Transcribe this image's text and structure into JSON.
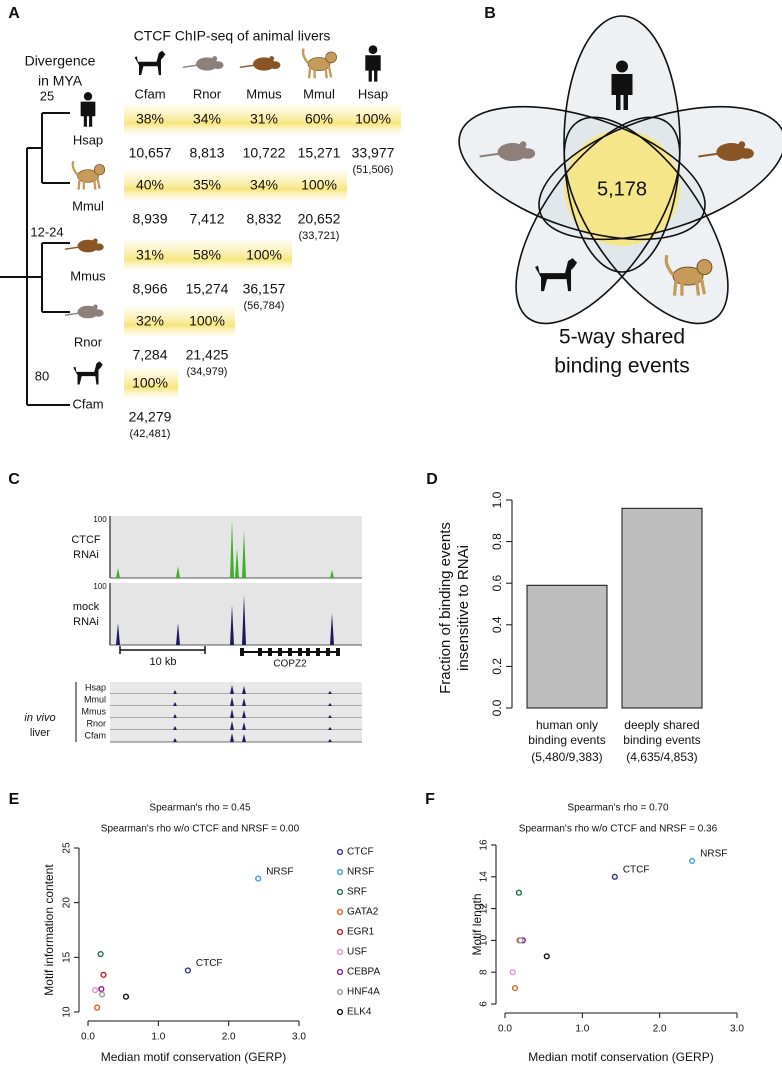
{
  "panel_a": {
    "letter": "A",
    "title": "CTCF ChIP-seq of animal livers",
    "divergence_label": [
      "Divergence",
      "in MYA"
    ],
    "columns": [
      "Cfam",
      "Rnor",
      "Mmus",
      "Mmul",
      "Hsap"
    ],
    "node_labels": [
      "25",
      "12-24",
      "80"
    ],
    "rows": [
      {
        "species": "Hsap",
        "percents": [
          "38%",
          "34%",
          "31%",
          "60%",
          "100%"
        ],
        "counts": [
          "10,657",
          "8,813",
          "10,722",
          "15,271",
          "33,977"
        ],
        "total": "(51,506)"
      },
      {
        "species": "Mmul",
        "percents": [
          "40%",
          "35%",
          "34%",
          "100%"
        ],
        "counts": [
          "8,939",
          "7,412",
          "8,832",
          "20,652"
        ],
        "total": "(33,721)"
      },
      {
        "species": "Mmus",
        "percents": [
          "31%",
          "58%",
          "100%"
        ],
        "counts": [
          "8,966",
          "15,274",
          "36,157"
        ],
        "total": "(56,784)"
      },
      {
        "species": "Rnor",
        "percents": [
          "32%",
          "100%"
        ],
        "counts": [
          "7,284",
          "21,425"
        ],
        "total": "(34,979)"
      },
      {
        "species": "Cfam",
        "percents": [
          "100%"
        ],
        "counts": [
          "24,279"
        ],
        "total": "(42,481)"
      }
    ]
  },
  "panel_b": {
    "letter": "B",
    "count": "5,178",
    "caption": [
      "5-way shared",
      "binding events"
    ]
  },
  "panel_c": {
    "letter": "C",
    "scale_labels": [
      "100",
      "100"
    ],
    "tracks": [
      [
        "CTCF",
        "RNAi"
      ],
      [
        "mock",
        "RNAi"
      ]
    ],
    "scale_bar": "10 kb",
    "gene": "COPZ2",
    "in_vivo": [
      "in vivo",
      "liver"
    ],
    "species": [
      "Hsap",
      "Mmul",
      "Mmus",
      "Rnor",
      "Cfam"
    ]
  },
  "chart_data": [
    {
      "type": "bar",
      "letter": "D",
      "ylabel": "Fraction of binding events insensitive to RNAi",
      "categories": [
        "human only binding events",
        "deeply shared binding events"
      ],
      "category_counts": [
        "(5,480/9,383)",
        "(4,635/4,853)"
      ],
      "values": [
        0.59,
        0.96
      ],
      "color": "#bebebe",
      "ylim": [
        0,
        1
      ],
      "yticks": [
        {
          "value": 0,
          "label": "0.0"
        },
        0.2,
        0.4,
        0.6,
        0.8,
        {
          "value": 1,
          "label": "1.0"
        }
      ]
    },
    {
      "type": "scatter",
      "letter": "E",
      "titles": [
        "Spearman's rho = 0.45",
        "Spearman's rho w/o CTCF and NRSF = 0.00"
      ],
      "xlabel": "Median motif conservation (GERP)",
      "ylabel": "Motif information content",
      "xlim": [
        0,
        3
      ],
      "xticks": [
        {
          "value": 0,
          "label": "0.0"
        },
        {
          "value": 1,
          "label": "1.0"
        },
        {
          "value": 2,
          "label": "2.0"
        },
        {
          "value": 3,
          "label": "3.0"
        }
      ],
      "ylim": [
        10,
        25
      ],
      "yticks": [
        10,
        15,
        20,
        25
      ],
      "legend": true,
      "series": [
        {
          "name": "CTCF",
          "color": "#2e3192",
          "x": [
            1.42
          ],
          "values": [
            13.8
          ],
          "label_point": true
        },
        {
          "name": "NRSF",
          "color": "#3b9fe0",
          "x": [
            2.42
          ],
          "values": [
            22.2
          ],
          "label_point": true
        },
        {
          "name": "SRF",
          "color": "#1d6b3c",
          "x": [
            0.18
          ],
          "values": [
            15.3
          ]
        },
        {
          "name": "GATA2",
          "color": "#e0601e",
          "x": [
            0.13
          ],
          "values": [
            10.4
          ]
        },
        {
          "name": "EGR1",
          "color": "#c3161c",
          "x": [
            0.22
          ],
          "values": [
            13.4
          ]
        },
        {
          "name": "USF",
          "color": "#e58fcb",
          "x": [
            0.1
          ],
          "values": [
            12.0
          ]
        },
        {
          "name": "CEBPA",
          "color": "#7b1c98",
          "x": [
            0.19
          ],
          "values": [
            12.1
          ]
        },
        {
          "name": "HNF4A",
          "color": "#9a9a9a",
          "x": [
            0.2
          ],
          "values": [
            11.6
          ]
        },
        {
          "name": "ELK4",
          "color": "#111111",
          "x": [
            0.54
          ],
          "values": [
            11.4
          ]
        }
      ]
    },
    {
      "type": "scatter",
      "letter": "F",
      "titles": [
        "Spearman's rho = 0.70",
        "Spearman's rho w/o CTCF and NRSF = 0.36"
      ],
      "xlabel": "Median motif conservation (GERP)",
      "ylabel": "Motif length",
      "xlim": [
        0,
        3
      ],
      "xticks": [
        {
          "value": 0,
          "label": "0.0"
        },
        {
          "value": 1,
          "label": "1.0"
        },
        {
          "value": 2,
          "label": "2.0"
        },
        {
          "value": 3,
          "label": "3.0"
        }
      ],
      "ylim": [
        6,
        16
      ],
      "yticks": [
        6,
        8,
        10,
        12,
        14,
        16
      ],
      "legend": false,
      "series": [
        {
          "name": "CTCF",
          "color": "#2e3192",
          "x": [
            1.42
          ],
          "values": [
            14
          ],
          "label_point": true
        },
        {
          "name": "NRSF",
          "color": "#3b9fe0",
          "x": [
            2.42
          ],
          "values": [
            15
          ],
          "label_point": true
        },
        {
          "name": "SRF",
          "color": "#1d6b3c",
          "x": [
            0.18
          ],
          "values": [
            13
          ]
        },
        {
          "name": "GATA2",
          "color": "#e0601e",
          "x": [
            0.13
          ],
          "values": [
            7
          ]
        },
        {
          "name": "EGR1",
          "color": "#c3161c",
          "x": [
            0.19
          ],
          "values": [
            10
          ]
        },
        {
          "name": "USF",
          "color": "#e58fcb",
          "x": [
            0.1
          ],
          "values": [
            8
          ]
        },
        {
          "name": "CEBPA",
          "color": "#7b1c98",
          "x": [
            0.23
          ],
          "values": [
            10
          ]
        },
        {
          "name": "HNF4A",
          "color": "#9a9a9a",
          "x": [
            0.2
          ],
          "values": [
            10
          ]
        },
        {
          "name": "ELK4",
          "color": "#111111",
          "x": [
            0.54
          ],
          "values": [
            9
          ]
        }
      ]
    }
  ]
}
